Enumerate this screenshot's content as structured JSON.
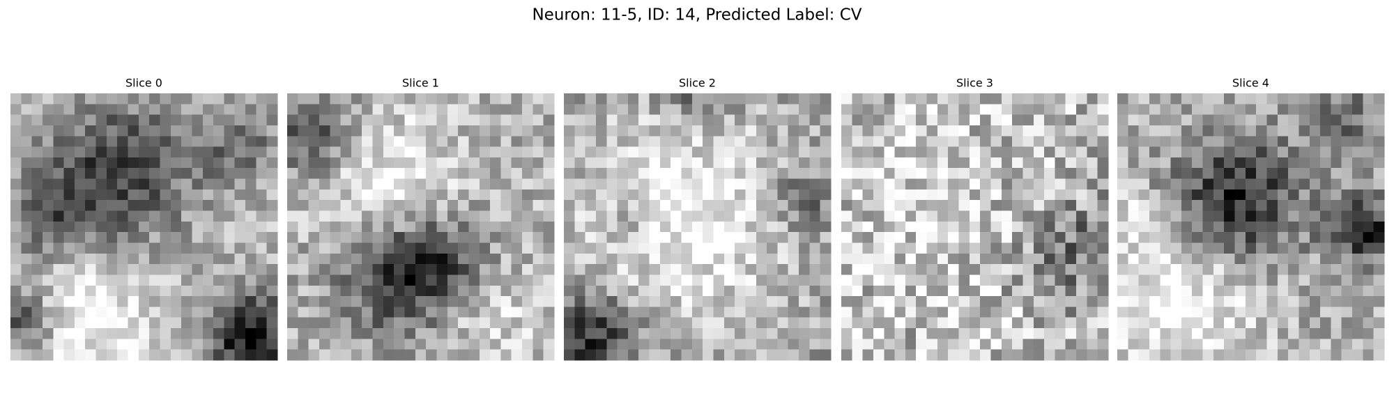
{
  "title": "Neuron: 11-5, ID: 14, Predicted Label: CV",
  "panels": [
    {
      "label": "Slice 0"
    },
    {
      "label": "Slice 1"
    },
    {
      "label": "Slice 2"
    },
    {
      "label": "Slice 3"
    },
    {
      "label": "Slice 4"
    }
  ]
}
